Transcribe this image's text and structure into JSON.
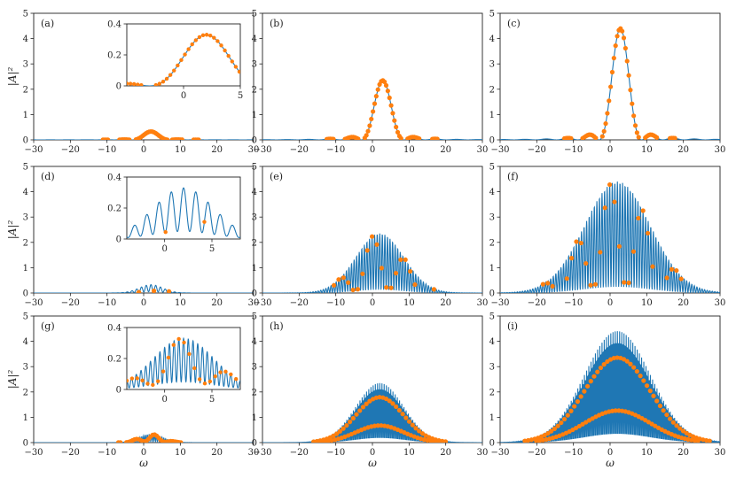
{
  "chart_data": [
    {
      "panel": "(a)",
      "type": "line",
      "xlim": [
        -30,
        30
      ],
      "ylim": [
        0,
        5
      ],
      "xticks": [
        -30,
        -20,
        -10,
        0,
        10,
        20,
        30
      ],
      "yticks": [
        0,
        1,
        2,
        3,
        4,
        5
      ],
      "ylabel": "|A|²",
      "xlabel": "",
      "pattern": "sinc",
      "amplitude": 0.33,
      "center": 2,
      "lobe_period": 5,
      "fringe_period": 0,
      "ymod": 0,
      "dots": "lobes",
      "dot_spacing": 0.45,
      "line_color": "#1f77b4",
      "dot_color": "#ff7f0e",
      "inset": {
        "xlim": [
          -5,
          5
        ],
        "ylim": [
          0,
          0.4
        ],
        "xticks": [
          0,
          5
        ],
        "yticks": [
          0,
          0.2,
          0.4
        ]
      }
    },
    {
      "panel": "(b)",
      "type": "line",
      "xlim": [
        -30,
        30
      ],
      "ylim": [
        0,
        5
      ],
      "xticks": [
        -30,
        -20,
        -10,
        0,
        10,
        20,
        30
      ],
      "yticks": [
        0,
        1,
        2,
        3,
        4,
        5
      ],
      "ylabel": "",
      "xlabel": "",
      "pattern": "sinc",
      "amplitude": 2.35,
      "center": 2.8,
      "lobe_period": 5.8,
      "fringe_period": 0,
      "ymod": 0,
      "dots": "lobes",
      "dot_spacing": 0.45,
      "line_color": "#1f77b4",
      "dot_color": "#ff7f0e"
    },
    {
      "panel": "(c)",
      "type": "line",
      "xlim": [
        -30,
        30
      ],
      "ylim": [
        0,
        5
      ],
      "xticks": [
        -30,
        -20,
        -10,
        0,
        10,
        20,
        30
      ],
      "yticks": [
        0,
        1,
        2,
        3,
        4,
        5
      ],
      "ylabel": "",
      "xlabel": "",
      "pattern": "sinc",
      "amplitude": 4.4,
      "center": 2.8,
      "lobe_period": 5.8,
      "fringe_period": 0,
      "ymod": 0,
      "dots": "lobes",
      "dot_spacing": 0.45,
      "line_color": "#1f77b4",
      "dot_color": "#ff7f0e"
    },
    {
      "panel": "(d)",
      "type": "line",
      "xlim": [
        -30,
        30
      ],
      "ylim": [
        0,
        5
      ],
      "xticks": [
        -30,
        -20,
        -10,
        0,
        10,
        20,
        30
      ],
      "yticks": [
        0,
        1,
        2,
        3,
        4,
        5
      ],
      "ylabel": "|A|²",
      "xlabel": "",
      "pattern": "fringe",
      "amplitude": 0.33,
      "center": 2,
      "sigma": 3.2,
      "fringe_period": 1.3,
      "ymod": 0.85,
      "dots": "sparse",
      "dot_spacing": 4.1,
      "line_color": "#1f77b4",
      "dot_color": "#ff7f0e",
      "inset": {
        "xlim": [
          -4,
          8
        ],
        "ylim": [
          0,
          0.4
        ],
        "xticks": [
          0,
          5
        ],
        "yticks": [
          0,
          0.2,
          0.4
        ]
      }
    },
    {
      "panel": "(e)",
      "type": "line",
      "xlim": [
        -30,
        30
      ],
      "ylim": [
        0,
        5
      ],
      "xticks": [
        -30,
        -20,
        -10,
        0,
        10,
        20,
        30
      ],
      "yticks": [
        0,
        1,
        2,
        3,
        4,
        5
      ],
      "ylabel": "",
      "xlabel": "",
      "pattern": "fringe",
      "amplitude": 2.35,
      "center": 2,
      "sigma": 6.5,
      "fringe_period": 0.7,
      "ymod": 0.95,
      "dots": "sparse",
      "dot_spacing": 1.3,
      "line_color": "#1f77b4",
      "dot_color": "#ff7f0e"
    },
    {
      "panel": "(f)",
      "type": "line",
      "xlim": [
        -30,
        30
      ],
      "ylim": [
        0,
        5
      ],
      "xticks": [
        -30,
        -20,
        -10,
        0,
        10,
        20,
        30
      ],
      "yticks": [
        0,
        1,
        2,
        3,
        4,
        5
      ],
      "ylabel": "",
      "xlabel": "",
      "pattern": "fringe",
      "amplitude": 4.4,
      "center": 2,
      "sigma": 9,
      "fringe_period": 0.7,
      "ymod": 0.95,
      "dots": "sparse",
      "dot_spacing": 1.3,
      "line_color": "#1f77b4",
      "dot_color": "#ff7f0e"
    },
    {
      "panel": "(g)",
      "type": "line",
      "xlim": [
        -30,
        30
      ],
      "ylim": [
        0,
        5
      ],
      "xticks": [
        -30,
        -20,
        -10,
        0,
        10,
        20,
        30
      ],
      "yticks": [
        0,
        1,
        2,
        3,
        4,
        5
      ],
      "ylabel": "|A|²",
      "xlabel": "ω",
      "pattern": "fringe",
      "amplitude": 0.33,
      "center": 2,
      "sigma": 3.2,
      "fringe_period": 0.5,
      "ymod": 0.85,
      "dots": "dense",
      "dot_spacing": 0.55,
      "line_color": "#1f77b4",
      "dot_color": "#ff7f0e",
      "inset": {
        "xlim": [
          -4,
          8
        ],
        "ylim": [
          0,
          0.4
        ],
        "xticks": [
          0,
          5
        ],
        "yticks": [
          0,
          0.2,
          0.4
        ]
      }
    },
    {
      "panel": "(h)",
      "type": "line",
      "xlim": [
        -30,
        30
      ],
      "ylim": [
        0,
        5
      ],
      "xticks": [
        -30,
        -20,
        -10,
        0,
        10,
        20,
        30
      ],
      "yticks": [
        0,
        1,
        2,
        3,
        4,
        5
      ],
      "ylabel": "",
      "xlabel": "ω",
      "pattern": "fringe",
      "amplitude": 2.35,
      "center": 2,
      "sigma": 6.5,
      "fringe_period": 0.3,
      "ymod": 0.95,
      "dots": "dense",
      "dot_spacing": 0.45,
      "line_color": "#1f77b4",
      "dot_color": "#ff7f0e"
    },
    {
      "panel": "(i)",
      "type": "line",
      "xlim": [
        -30,
        30
      ],
      "ylim": [
        0,
        5
      ],
      "xticks": [
        -30,
        -20,
        -10,
        0,
        10,
        20,
        30
      ],
      "yticks": [
        0,
        1,
        2,
        3,
        4,
        5
      ],
      "ylabel": "",
      "xlabel": "ω",
      "pattern": "fringe",
      "amplitude": 4.4,
      "center": 2,
      "sigma": 9,
      "fringe_period": 0.3,
      "ymod": 0.95,
      "dots": "dense",
      "dot_spacing": 0.45,
      "line_color": "#1f77b4",
      "dot_color": "#ff7f0e"
    }
  ]
}
